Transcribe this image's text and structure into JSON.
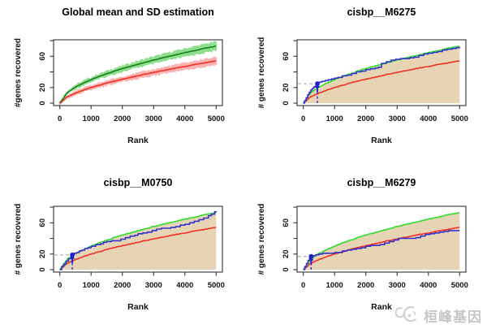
{
  "watermark": {
    "text": "桓峰基因",
    "icon": "chat-face-logo-icon",
    "color": "#cfcfcf"
  },
  "colors": {
    "axis": "#333333",
    "tick_text": "#111111",
    "title_text": "#000000",
    "global_mean_line": "#1e7d1e",
    "global_mean_band": "#8ce08c",
    "global_sd_line": "#ee3124",
    "global_sd_band": "#ffb0b0",
    "motif_mean_line": "#2edc2e",
    "motif_sd_line": "#ee3124",
    "recovery_line": "#3333cc",
    "auc_fill": "#e6d4b4",
    "gray_dashed": "#b8b8b8",
    "annotation_blue": "#2222cc"
  },
  "chart_data": [
    {
      "id": "global-mean",
      "type": "line",
      "title": "Global mean and SD estimation",
      "xlabel": "Rank",
      "ylabel": "#genes recovered",
      "xlim": [
        0,
        5000
      ],
      "ylim": [
        0,
        78
      ],
      "xticks": [
        0,
        1000,
        2000,
        3000,
        4000,
        5000
      ],
      "yticks": [
        0,
        20,
        40,
        60,
        80
      ],
      "ytick_visible_labels": [
        0,
        20,
        60
      ],
      "x_step": 250,
      "sd_bands": true,
      "series": [
        {
          "name": "mean",
          "band_halfwidth": 4,
          "y": [
            0,
            14,
            20.6,
            25.7,
            30.1,
            34.1,
            37.6,
            41,
            44.1,
            47,
            49.9,
            52.5,
            55.1,
            57.6,
            60,
            62.3,
            64.6,
            66.8,
            68.9,
            71,
            73
          ]
        },
        {
          "name": "mean_minus_sd",
          "band_halfwidth": 3.2,
          "y": [
            0,
            8.4,
            13,
            16.7,
            19.9,
            22.9,
            25.6,
            28.2,
            30.6,
            32.9,
            35.1,
            37.3,
            39.3,
            41.3,
            43.3,
            45.2,
            47,
            48.8,
            50.6,
            52.3,
            54
          ]
        }
      ]
    },
    {
      "id": "cisbp__M6275",
      "type": "line",
      "title": "cisbp__M6275",
      "xlabel": "Rank",
      "ylabel": "# genes recovered",
      "xlim": [
        0,
        5000
      ],
      "ylim": [
        0,
        78
      ],
      "xticks": [
        0,
        1000,
        2000,
        3000,
        4000,
        5000
      ],
      "yticks": [
        0,
        20,
        40,
        60,
        80
      ],
      "ytick_visible_labels": [
        0,
        20,
        60
      ],
      "x_step": 250,
      "fill_under_mean": true,
      "series": [
        {
          "name": "mean",
          "y": [
            0,
            14,
            20.6,
            25.7,
            30.1,
            34.1,
            37.6,
            41,
            44.1,
            47,
            49.9,
            52.5,
            55.1,
            57.6,
            60,
            62.3,
            64.6,
            66.8,
            68.9,
            71,
            73
          ]
        },
        {
          "name": "mean_minus_sd",
          "y": [
            0,
            8.4,
            13,
            16.7,
            19.9,
            22.9,
            25.6,
            28.2,
            30.6,
            32.9,
            35.1,
            37.3,
            39.3,
            41.3,
            43.3,
            45.2,
            47,
            48.8,
            50.6,
            52.3,
            54
          ]
        },
        {
          "name": "recovery",
          "points": [
            [
              0,
              0
            ],
            [
              40,
              3
            ],
            [
              90,
              7
            ],
            [
              140,
              11
            ],
            [
              190,
              14
            ],
            [
              240,
              17
            ],
            [
              290,
              19
            ],
            [
              340,
              21
            ],
            [
              400,
              23
            ],
            [
              440,
              25
            ],
            [
              470,
              26
            ],
            [
              520,
              27
            ],
            [
              600,
              28
            ],
            [
              700,
              29
            ],
            [
              800,
              30
            ],
            [
              900,
              31
            ],
            [
              1000,
              32
            ],
            [
              1100,
              33
            ],
            [
              1250,
              35
            ],
            [
              1400,
              36
            ],
            [
              1550,
              38
            ],
            [
              1700,
              40
            ],
            [
              1850,
              41
            ],
            [
              2000,
              43
            ],
            [
              2150,
              44
            ],
            [
              2300,
              45
            ],
            [
              2400,
              46
            ],
            [
              2500,
              51
            ],
            [
              2650,
              53
            ],
            [
              2800,
              55
            ],
            [
              2950,
              56
            ],
            [
              3100,
              57
            ],
            [
              3250,
              57
            ],
            [
              3400,
              58
            ],
            [
              3550,
              59
            ],
            [
              3700,
              61
            ],
            [
              3850,
              63
            ],
            [
              4000,
              64
            ],
            [
              4150,
              65
            ],
            [
              4300,
              66
            ],
            [
              4450,
              68
            ],
            [
              4600,
              69
            ],
            [
              4750,
              70
            ],
            [
              4900,
              71
            ],
            [
              5000,
              72
            ]
          ]
        }
      ],
      "annotation": {
        "rank": 450,
        "genes_recovered": 25
      }
    },
    {
      "id": "cisbp__M0750",
      "type": "line",
      "title": "cisbp__M0750",
      "xlabel": "Rank",
      "ylabel": "# genes recovered",
      "xlim": [
        0,
        5000
      ],
      "ylim": [
        0,
        78
      ],
      "xticks": [
        0,
        1000,
        2000,
        3000,
        4000,
        5000
      ],
      "yticks": [
        0,
        20,
        40,
        60,
        80
      ],
      "ytick_visible_labels": [
        0,
        20,
        60
      ],
      "x_step": 250,
      "fill_under_mean": true,
      "series": [
        {
          "name": "mean",
          "y": [
            0,
            14,
            20.6,
            25.7,
            30.1,
            34.1,
            37.6,
            41,
            44.1,
            47,
            49.9,
            52.5,
            55.1,
            57.6,
            60,
            62.3,
            64.6,
            66.8,
            68.9,
            71,
            73
          ]
        },
        {
          "name": "mean_minus_sd",
          "y": [
            0,
            8.4,
            13,
            16.7,
            19.9,
            22.9,
            25.6,
            28.2,
            30.6,
            32.9,
            35.1,
            37.3,
            39.3,
            41.3,
            43.3,
            45.2,
            47,
            48.8,
            50.6,
            52.3,
            54
          ]
        },
        {
          "name": "recovery",
          "points": [
            [
              0,
              0
            ],
            [
              60,
              4
            ],
            [
              120,
              7
            ],
            [
              200,
              11
            ],
            [
              280,
              14
            ],
            [
              360,
              17
            ],
            [
              400,
              19
            ],
            [
              460,
              21
            ],
            [
              540,
              22
            ],
            [
              620,
              24
            ],
            [
              700,
              25
            ],
            [
              800,
              27
            ],
            [
              900,
              28
            ],
            [
              1000,
              30
            ],
            [
              1150,
              32
            ],
            [
              1300,
              33
            ],
            [
              1400,
              35
            ],
            [
              1500,
              36
            ],
            [
              1650,
              37
            ],
            [
              1800,
              37
            ],
            [
              1950,
              39
            ],
            [
              2100,
              41
            ],
            [
              2250,
              43
            ],
            [
              2400,
              44
            ],
            [
              2500,
              46
            ],
            [
              2650,
              47
            ],
            [
              2800,
              48
            ],
            [
              2950,
              50
            ],
            [
              3100,
              52
            ],
            [
              3250,
              53
            ],
            [
              3400,
              53
            ],
            [
              3550,
              54
            ],
            [
              3700,
              55
            ],
            [
              3850,
              57
            ],
            [
              4000,
              58
            ],
            [
              4150,
              60
            ],
            [
              4300,
              62
            ],
            [
              4450,
              64
            ],
            [
              4600,
              66
            ],
            [
              4750,
              69
            ],
            [
              4850,
              71
            ],
            [
              4950,
              74
            ],
            [
              5000,
              75
            ]
          ]
        }
      ],
      "annotation": {
        "rank": 400,
        "genes_recovered": 19
      }
    },
    {
      "id": "cisbp__M6279",
      "type": "line",
      "title": "cisbp__M6279",
      "xlabel": "Rank",
      "ylabel": "# genes recovered",
      "xlim": [
        0,
        5000
      ],
      "ylim": [
        0,
        78
      ],
      "xticks": [
        0,
        1000,
        2000,
        3000,
        4000,
        5000
      ],
      "yticks": [
        0,
        20,
        40,
        60,
        80
      ],
      "ytick_visible_labels": [
        0,
        20,
        60
      ],
      "x_step": 250,
      "fill_under_mean": true,
      "series": [
        {
          "name": "mean",
          "y": [
            0,
            14,
            20.6,
            25.7,
            30.1,
            34.1,
            37.6,
            41,
            44.1,
            47,
            49.9,
            52.5,
            55.1,
            57.6,
            60,
            62.3,
            64.6,
            66.8,
            68.9,
            71,
            73
          ]
        },
        {
          "name": "mean_minus_sd",
          "y": [
            0,
            8.4,
            13,
            16.7,
            19.9,
            22.9,
            25.6,
            28.2,
            30.6,
            32.9,
            35.1,
            37.3,
            39.3,
            41.3,
            43.3,
            45.2,
            47,
            48.8,
            50.6,
            52.3,
            54
          ]
        },
        {
          "name": "recovery",
          "points": [
            [
              0,
              0
            ],
            [
              50,
              4
            ],
            [
              100,
              8
            ],
            [
              150,
              12
            ],
            [
              200,
              15
            ],
            [
              250,
              17
            ],
            [
              320,
              18
            ],
            [
              400,
              19
            ],
            [
              500,
              20
            ],
            [
              620,
              21
            ],
            [
              800,
              21
            ],
            [
              1000,
              22
            ],
            [
              1150,
              22
            ],
            [
              1250,
              24
            ],
            [
              1400,
              25
            ],
            [
              1550,
              26
            ],
            [
              1700,
              27
            ],
            [
              1850,
              28
            ],
            [
              2000,
              30
            ],
            [
              2150,
              31
            ],
            [
              2300,
              31
            ],
            [
              2450,
              32
            ],
            [
              2600,
              34
            ],
            [
              2750,
              36
            ],
            [
              2900,
              38
            ],
            [
              3050,
              40
            ],
            [
              3250,
              40
            ],
            [
              3450,
              40
            ],
            [
              3600,
              41
            ],
            [
              3750,
              43
            ],
            [
              3900,
              45
            ],
            [
              4050,
              46
            ],
            [
              4200,
              47
            ],
            [
              4350,
              48
            ],
            [
              4500,
              49
            ],
            [
              4650,
              50
            ],
            [
              4800,
              50
            ],
            [
              5000,
              50
            ]
          ]
        }
      ],
      "annotation": {
        "rank": 250,
        "genes_recovered": 17
      }
    }
  ]
}
